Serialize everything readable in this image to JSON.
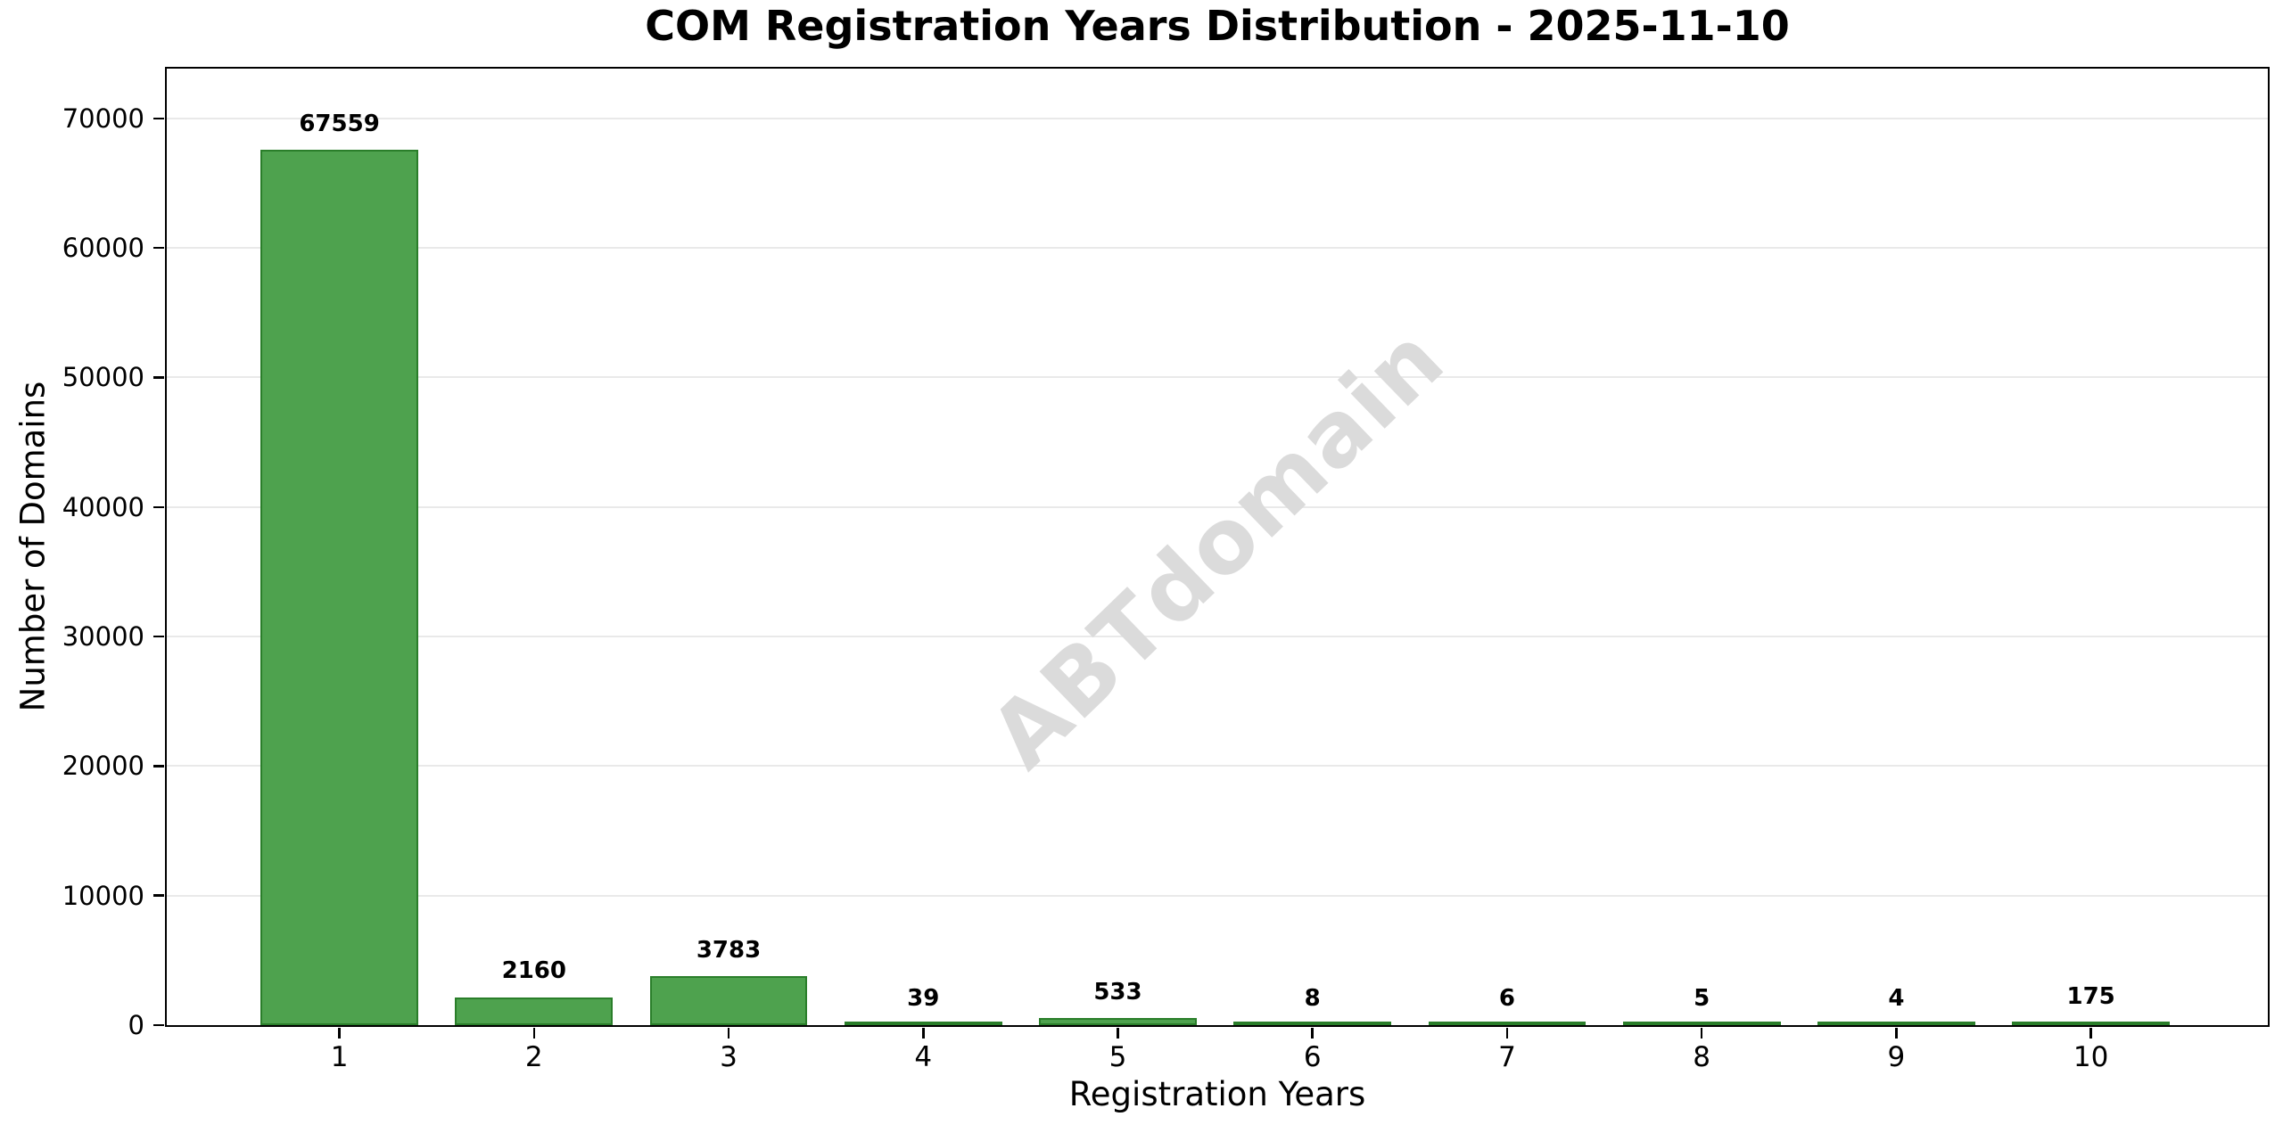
{
  "chart_data": {
    "type": "bar",
    "title": "COM Registration Years Distribution - 2025-11-10",
    "xlabel": "Registration Years",
    "ylabel": "Number of Domains",
    "categories": [
      1,
      2,
      3,
      4,
      5,
      6,
      7,
      8,
      9,
      10
    ],
    "values": [
      67559,
      2160,
      3783,
      39,
      533,
      8,
      6,
      5,
      4,
      175
    ],
    "yticks": [
      0,
      10000,
      20000,
      30000,
      40000,
      50000,
      60000,
      70000
    ],
    "ylim": [
      0,
      73840
    ],
    "xlim": [
      0.113,
      10.909
    ],
    "bar_width_units": 0.81,
    "value_label_offset_units": 1000,
    "grid": "horizontal",
    "legend": "none",
    "watermark": {
      "text": "ABTdomain",
      "rotation_deg": -44
    },
    "colors": {
      "bar_fill": "#4ea24e",
      "bar_edge": "#2a7e2a",
      "gridline": "#e9e9e9",
      "axis": "#000000",
      "text": "#000000",
      "watermark": "#dbdbdb"
    }
  }
}
